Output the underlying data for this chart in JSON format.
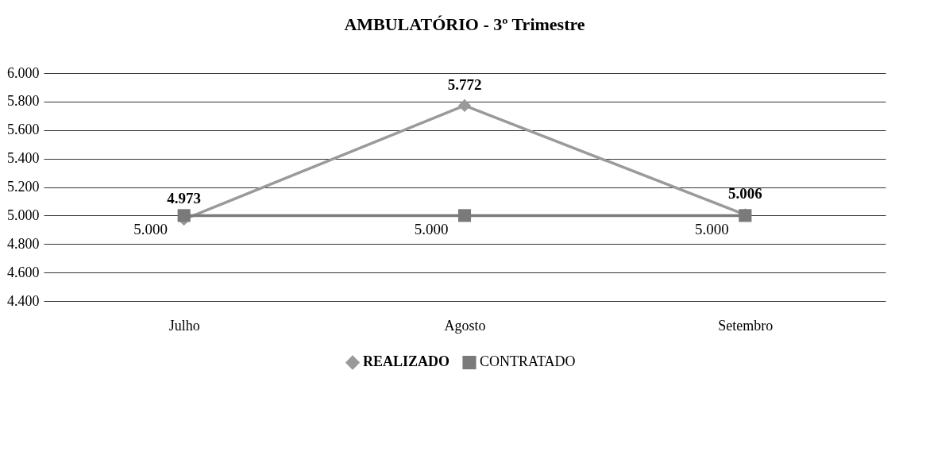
{
  "chart_data": {
    "type": "line",
    "title": "AMBULATÓRIO - 3º Trimestre",
    "categories": [
      "Julho",
      "Agosto",
      "Setembro"
    ],
    "series": [
      {
        "name": "REALIZADO",
        "color": "#9a9a9a",
        "marker": "diamond",
        "values": [
          4973,
          5772,
          5006
        ],
        "value_labels": [
          "4.973",
          "5.772",
          "5.006"
        ]
      },
      {
        "name": "CONTRATADO",
        "color": "#7a7a7a",
        "marker": "square",
        "values": [
          5000,
          5000,
          5000
        ],
        "value_labels": [
          "5.000",
          "5.000",
          "5.000"
        ]
      }
    ],
    "ylim": [
      4400,
      6000
    ],
    "yticks": [
      {
        "value": 4400,
        "label": "4.400"
      },
      {
        "value": 4600,
        "label": "4.600"
      },
      {
        "value": 4800,
        "label": "4.800"
      },
      {
        "value": 5000,
        "label": "5.000"
      },
      {
        "value": 5200,
        "label": "5.200"
      },
      {
        "value": 5400,
        "label": "5.400"
      },
      {
        "value": 5600,
        "label": "5.600"
      },
      {
        "value": 5800,
        "label": "5.800"
      },
      {
        "value": 6000,
        "label": "6.000"
      }
    ],
    "grid": "y",
    "legend": "bottom",
    "line_style": "solid"
  }
}
